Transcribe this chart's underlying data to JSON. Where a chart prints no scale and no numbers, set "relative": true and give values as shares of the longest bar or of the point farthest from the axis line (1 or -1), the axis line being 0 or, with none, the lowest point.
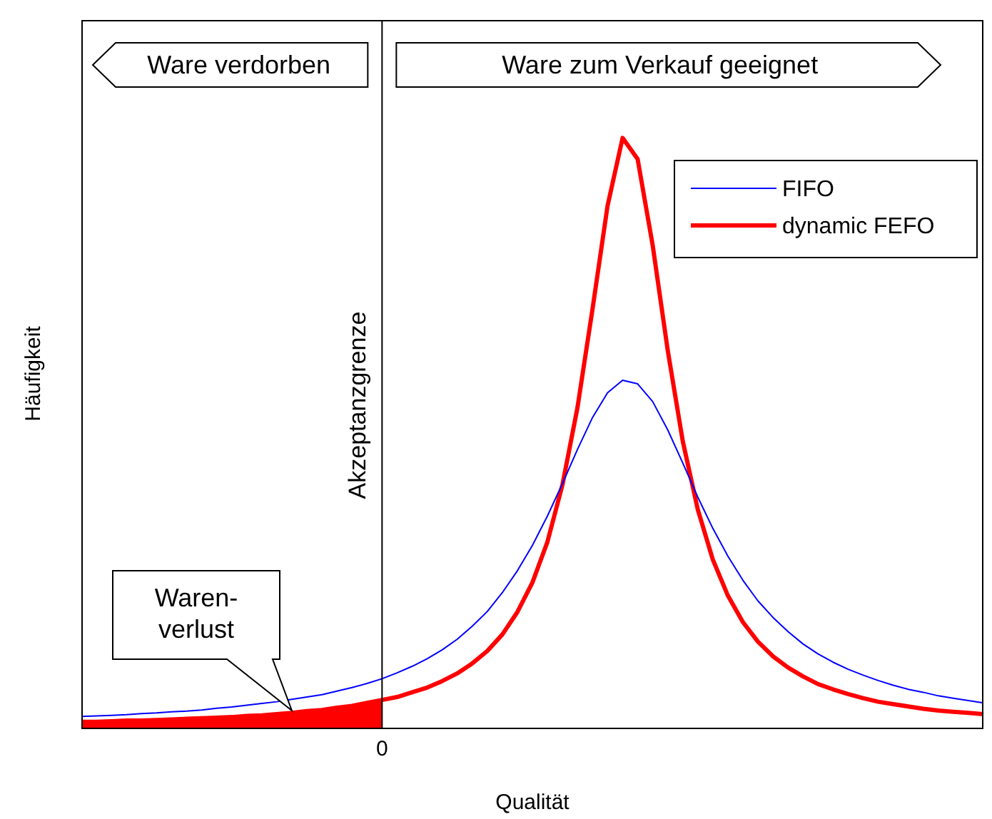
{
  "chart_data": {
    "type": "line",
    "xlabel": "Qualität",
    "ylabel": "Häufigkeit",
    "relative": true,
    "marker": "none",
    "legend": "top right",
    "categories": [
      null,
      null,
      null,
      null,
      null,
      null,
      null,
      null,
      null,
      null,
      null,
      null,
      null,
      null,
      null,
      null,
      null,
      null,
      null,
      null,
      null,
      null,
      null,
      null,
      null,
      null,
      null,
      null,
      null,
      null,
      null,
      null,
      null,
      null,
      null,
      null,
      null,
      null,
      null,
      null,
      null,
      null,
      null,
      null,
      null,
      null,
      null,
      null,
      null,
      null,
      null,
      null,
      null,
      null,
      null,
      null,
      null,
      null,
      null,
      null,
      null
    ],
    "series": [
      {
        "name": "FIFO",
        "color": "#0000ff",
        "values": [
          0.019,
          0.02,
          0.021,
          0.022,
          0.024,
          0.025,
          0.027,
          0.028,
          0.03,
          0.033,
          0.035,
          0.038,
          0.041,
          0.044,
          0.048,
          0.052,
          0.056,
          0.062,
          0.068,
          0.075,
          0.083,
          0.093,
          0.104,
          0.117,
          0.132,
          0.15,
          0.172,
          0.197,
          0.229,
          0.266,
          0.309,
          0.359,
          0.414,
          0.472,
          0.526,
          0.568,
          0.589,
          0.583,
          0.553,
          0.505,
          0.449,
          0.391,
          0.338,
          0.291,
          0.25,
          0.215,
          0.187,
          0.163,
          0.142,
          0.125,
          0.111,
          0.099,
          0.089,
          0.08,
          0.072,
          0.065,
          0.06,
          0.054,
          0.05,
          0.046,
          0.042
        ]
      },
      {
        "name": "dynamic FEFO",
        "color": "#ff0000",
        "values": [
          0.01,
          0.01,
          0.011,
          0.012,
          0.012,
          0.013,
          0.014,
          0.015,
          0.016,
          0.017,
          0.018,
          0.02,
          0.021,
          0.023,
          0.025,
          0.028,
          0.03,
          0.034,
          0.037,
          0.042,
          0.047,
          0.052,
          0.06,
          0.068,
          0.079,
          0.092,
          0.109,
          0.13,
          0.158,
          0.196,
          0.246,
          0.315,
          0.412,
          0.543,
          0.71,
          0.885,
          1,
          0.964,
          0.818,
          0.64,
          0.486,
          0.37,
          0.285,
          0.224,
          0.179,
          0.146,
          0.121,
          0.102,
          0.087,
          0.074,
          0.065,
          0.057,
          0.05,
          0.044,
          0.04,
          0.036,
          0.032,
          0.029,
          0.027,
          0.025,
          0.023
        ]
      },
      {
        "type": "area",
        "color": "#ff0000",
        "values": [
          0.01,
          0.01,
          0.011,
          0.012,
          0.012,
          0.013,
          0.014,
          0.015,
          0.016,
          0.017,
          0.018,
          0.02,
          0.021,
          0.023,
          0.025,
          0.028,
          0.03,
          0.034,
          0.037,
          0.042,
          0.047,
          null,
          null,
          null,
          null,
          null,
          null,
          null,
          null,
          null,
          null,
          null,
          null,
          null,
          null,
          null,
          null,
          null,
          null,
          null,
          null,
          null,
          null,
          null,
          null,
          null,
          null,
          null,
          null,
          null,
          null,
          null,
          null,
          null,
          null,
          null,
          null,
          null,
          null,
          null,
          null
        ]
      }
    ],
    "ref_lines": [
      {
        "axis": "x",
        "value": "0",
        "label": "Akzeptanzgrenze",
        "color": "#000000"
      }
    ],
    "annotations": [
      "Ware verdorben",
      "Ware zum Verkauf geeignet",
      "Waren-\nverlust"
    ]
  }
}
